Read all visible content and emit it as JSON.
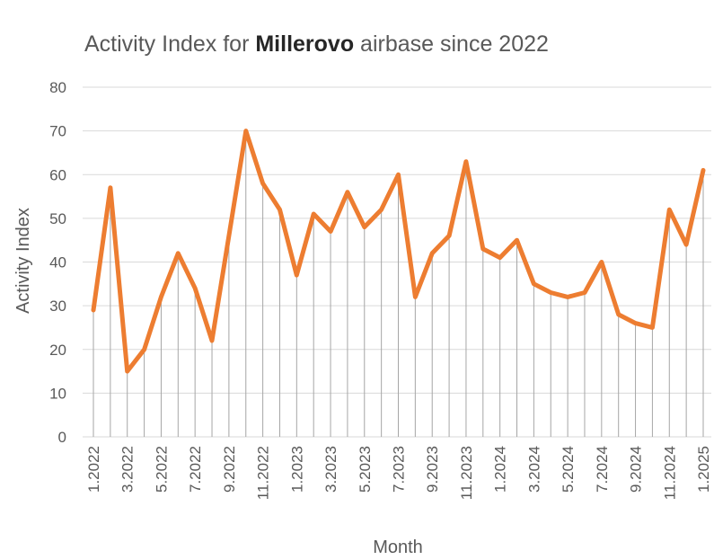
{
  "chart_data": {
    "type": "line",
    "title": {
      "prefix": "Activity Index for ",
      "bold": "Millerovo",
      "suffix": " airbase since 2022"
    },
    "xlabel": "Month",
    "ylabel": "Activity Index",
    "ylim": [
      0,
      80
    ],
    "yticks": [
      0,
      10,
      20,
      30,
      40,
      50,
      60,
      70,
      80
    ],
    "grid": true,
    "drop_lines": true,
    "line_color": "#ED7D31",
    "grid_color": "#D9D9D9",
    "drop_line_color": "#A6A6A6",
    "x_tick_labels": [
      "1.2022",
      "3.2022",
      "5.2022",
      "7.2022",
      "9.2022",
      "11.2022",
      "1.2023",
      "3.2023",
      "5.2023",
      "7.2023",
      "9.2023",
      "11.2023",
      "1.2024",
      "3.2024",
      "5.2024",
      "7.2024",
      "9.2024",
      "11.2024",
      "1.2025"
    ],
    "series": [
      {
        "values": [
          29,
          57,
          15,
          20,
          32,
          42,
          34,
          22,
          46,
          70,
          58,
          52,
          37,
          51,
          47,
          56,
          48,
          52,
          60,
          32,
          42,
          46,
          63,
          43,
          41,
          45,
          35,
          33,
          32,
          33,
          40,
          28,
          26,
          25,
          52,
          44,
          61
        ]
      }
    ]
  }
}
